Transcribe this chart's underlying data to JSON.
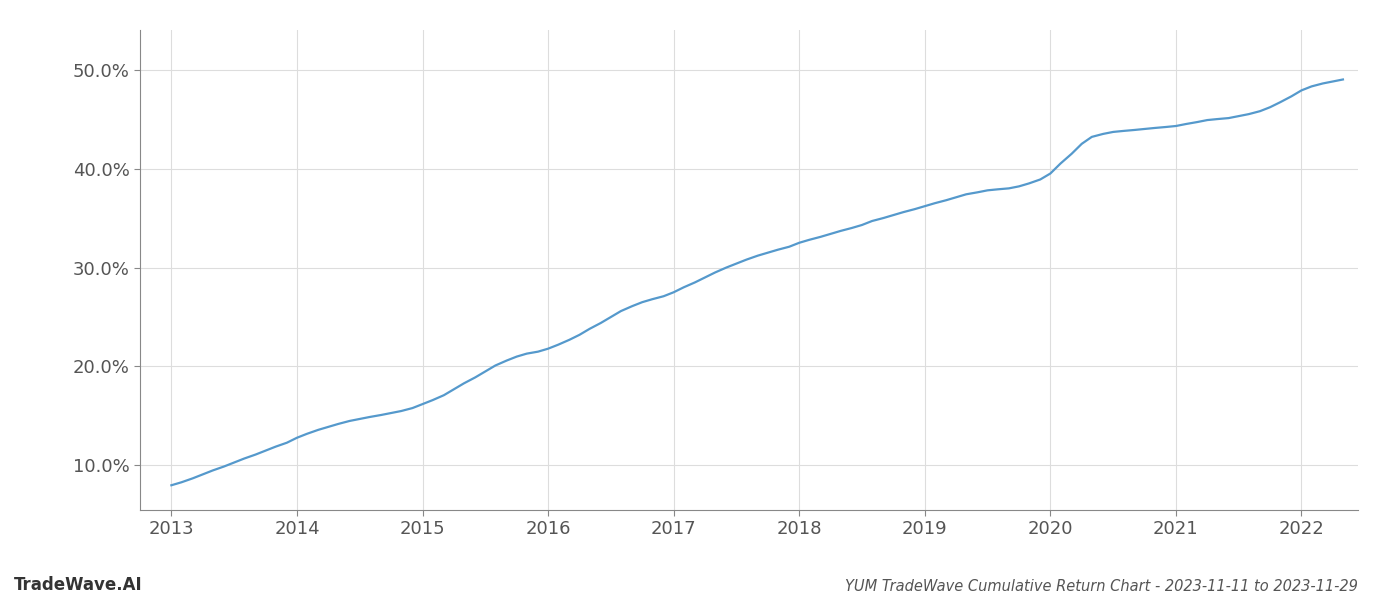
{
  "title": "YUM TradeWave Cumulative Return Chart - 2023-11-11 to 2023-11-29",
  "watermark": "TradeWave.AI",
  "line_color": "#5599cc",
  "background_color": "#ffffff",
  "grid_color": "#dddddd",
  "x_values": [
    2013.0,
    2013.08,
    2013.17,
    2013.25,
    2013.33,
    2013.42,
    2013.5,
    2013.58,
    2013.67,
    2013.75,
    2013.83,
    2013.92,
    2014.0,
    2014.08,
    2014.17,
    2014.25,
    2014.33,
    2014.42,
    2014.5,
    2014.58,
    2014.67,
    2014.75,
    2014.83,
    2014.92,
    2015.0,
    2015.08,
    2015.17,
    2015.25,
    2015.33,
    2015.42,
    2015.5,
    2015.58,
    2015.67,
    2015.75,
    2015.83,
    2015.92,
    2016.0,
    2016.08,
    2016.17,
    2016.25,
    2016.33,
    2016.42,
    2016.5,
    2016.58,
    2016.67,
    2016.75,
    2016.83,
    2016.92,
    2017.0,
    2017.08,
    2017.17,
    2017.25,
    2017.33,
    2017.42,
    2017.5,
    2017.58,
    2017.67,
    2017.75,
    2017.83,
    2017.92,
    2018.0,
    2018.08,
    2018.17,
    2018.25,
    2018.33,
    2018.42,
    2018.5,
    2018.58,
    2018.67,
    2018.75,
    2018.83,
    2018.92,
    2019.0,
    2019.08,
    2019.17,
    2019.25,
    2019.33,
    2019.42,
    2019.5,
    2019.58,
    2019.67,
    2019.75,
    2019.83,
    2019.92,
    2020.0,
    2020.08,
    2020.17,
    2020.25,
    2020.33,
    2020.42,
    2020.5,
    2020.58,
    2020.67,
    2020.75,
    2020.83,
    2020.92,
    2021.0,
    2021.08,
    2021.17,
    2021.25,
    2021.33,
    2021.42,
    2021.5,
    2021.58,
    2021.67,
    2021.75,
    2021.83,
    2021.92,
    2022.0,
    2022.08,
    2022.17,
    2022.25,
    2022.33
  ],
  "y_values": [
    8.0,
    8.3,
    8.7,
    9.1,
    9.5,
    9.9,
    10.3,
    10.7,
    11.1,
    11.5,
    11.9,
    12.3,
    12.8,
    13.2,
    13.6,
    13.9,
    14.2,
    14.5,
    14.7,
    14.9,
    15.1,
    15.3,
    15.5,
    15.8,
    16.2,
    16.6,
    17.1,
    17.7,
    18.3,
    18.9,
    19.5,
    20.1,
    20.6,
    21.0,
    21.3,
    21.5,
    21.8,
    22.2,
    22.7,
    23.2,
    23.8,
    24.4,
    25.0,
    25.6,
    26.1,
    26.5,
    26.8,
    27.1,
    27.5,
    28.0,
    28.5,
    29.0,
    29.5,
    30.0,
    30.4,
    30.8,
    31.2,
    31.5,
    31.8,
    32.1,
    32.5,
    32.8,
    33.1,
    33.4,
    33.7,
    34.0,
    34.3,
    34.7,
    35.0,
    35.3,
    35.6,
    35.9,
    36.2,
    36.5,
    36.8,
    37.1,
    37.4,
    37.6,
    37.8,
    37.9,
    38.0,
    38.2,
    38.5,
    38.9,
    39.5,
    40.5,
    41.5,
    42.5,
    43.2,
    43.5,
    43.7,
    43.8,
    43.9,
    44.0,
    44.1,
    44.2,
    44.3,
    44.5,
    44.7,
    44.9,
    45.0,
    45.1,
    45.3,
    45.5,
    45.8,
    46.2,
    46.7,
    47.3,
    47.9,
    48.3,
    48.6,
    48.8,
    49.0
  ],
  "xlim": [
    2012.75,
    2022.45
  ],
  "ylim": [
    5.5,
    54.0
  ],
  "yticks": [
    10.0,
    20.0,
    30.0,
    40.0,
    50.0
  ],
  "xticks": [
    2013,
    2014,
    2015,
    2016,
    2017,
    2018,
    2019,
    2020,
    2021,
    2022
  ],
  "line_width": 1.6,
  "title_fontsize": 10.5,
  "tick_fontsize": 13,
  "watermark_fontsize": 12
}
